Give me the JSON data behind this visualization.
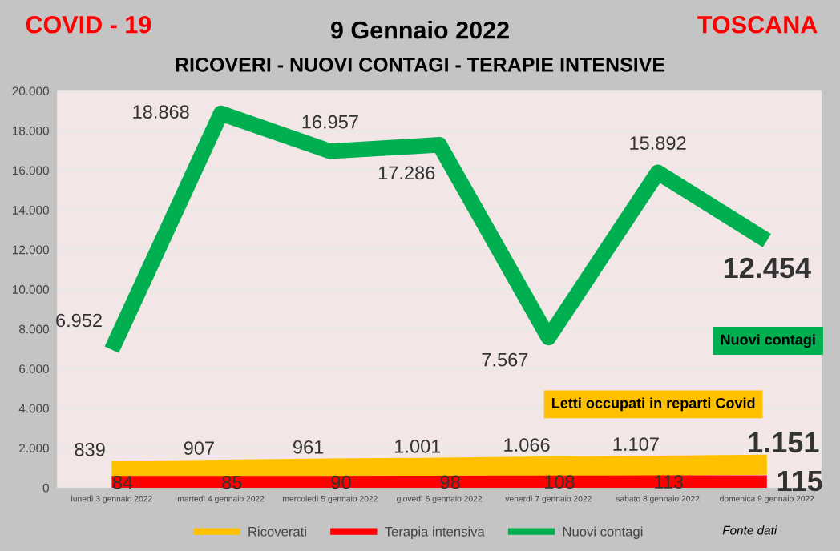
{
  "chart_data": {
    "type": "line",
    "title": "9 Gennaio 2022",
    "subtitle": "RICOVERI - NUOVI CONTAGI - TERAPIE INTENSIVE",
    "annotations": [
      "COVID - 19",
      "TOSCANA",
      "Nuovi contagi",
      "Letti occupati in reparti Covid",
      "Fonte dati"
    ],
    "categories": [
      "lunedì 3 gennaio 2022",
      "martedì 4 gennaio 2022",
      "mercoledì 5 gennaio 2022",
      "giovedì 6 gennaio 2022",
      "venerdì 7 gennaio 2022",
      "sabato 8 gennaio 2022",
      "domenica 9 gennaio 2022"
    ],
    "series": [
      {
        "name": "Ricoverati",
        "color": "#ffc000",
        "values": [
          839,
          907,
          961,
          1001,
          1066,
          1107,
          1151
        ],
        "value_labels": [
          "839",
          "907",
          "961",
          "1.001",
          "1.066",
          "1.107",
          "1.151"
        ]
      },
      {
        "name": "Terapia intensiva",
        "color": "#ff0000",
        "values": [
          84,
          85,
          90,
          98,
          108,
          113,
          115
        ],
        "value_labels": [
          "84",
          "85",
          "90",
          "98",
          "108",
          "113",
          "115"
        ]
      },
      {
        "name": "Nuovi contagi",
        "color": "#00b050",
        "values": [
          6952,
          18868,
          16957,
          17286,
          7567,
          15892,
          12454
        ],
        "value_labels": [
          "6.952",
          "18.868",
          "16.957",
          "17.286",
          "7.567",
          "15.892",
          "12.454"
        ]
      }
    ],
    "ylim": [
      0,
      20000
    ],
    "yticks": [
      {
        "value": 0,
        "label": "0"
      },
      {
        "value": 2000,
        "label": "2.000"
      },
      {
        "value": 4000,
        "label": "4.000"
      },
      {
        "value": 6000,
        "label": "6.000"
      },
      {
        "value": 8000,
        "label": "8.000"
      },
      {
        "value": 10000,
        "label": "10.000"
      },
      {
        "value": 12000,
        "label": "12.000"
      },
      {
        "value": 14000,
        "label": "14.000"
      },
      {
        "value": 16000,
        "label": "16.000"
      },
      {
        "value": 18000,
        "label": "18.000"
      },
      {
        "value": 20000,
        "label": "20.000"
      }
    ],
    "grid": "y",
    "legend": "bottom",
    "marker": "none",
    "line_style": "solid"
  }
}
